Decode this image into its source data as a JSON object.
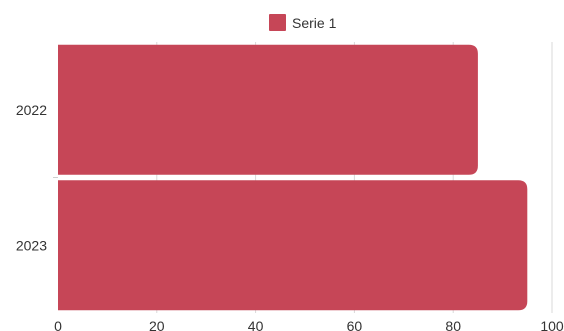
{
  "chart_data": {
    "type": "bar",
    "orientation": "horizontal",
    "categories": [
      "2022",
      "2023"
    ],
    "series": [
      {
        "name": "Serie 1",
        "values": [
          85,
          95
        ],
        "color": "#c64657"
      }
    ],
    "xlim": [
      0,
      100
    ],
    "x_ticks": [
      "0",
      "20",
      "40",
      "60",
      "80",
      "100"
    ],
    "grid": true,
    "legend": "top-center"
  }
}
